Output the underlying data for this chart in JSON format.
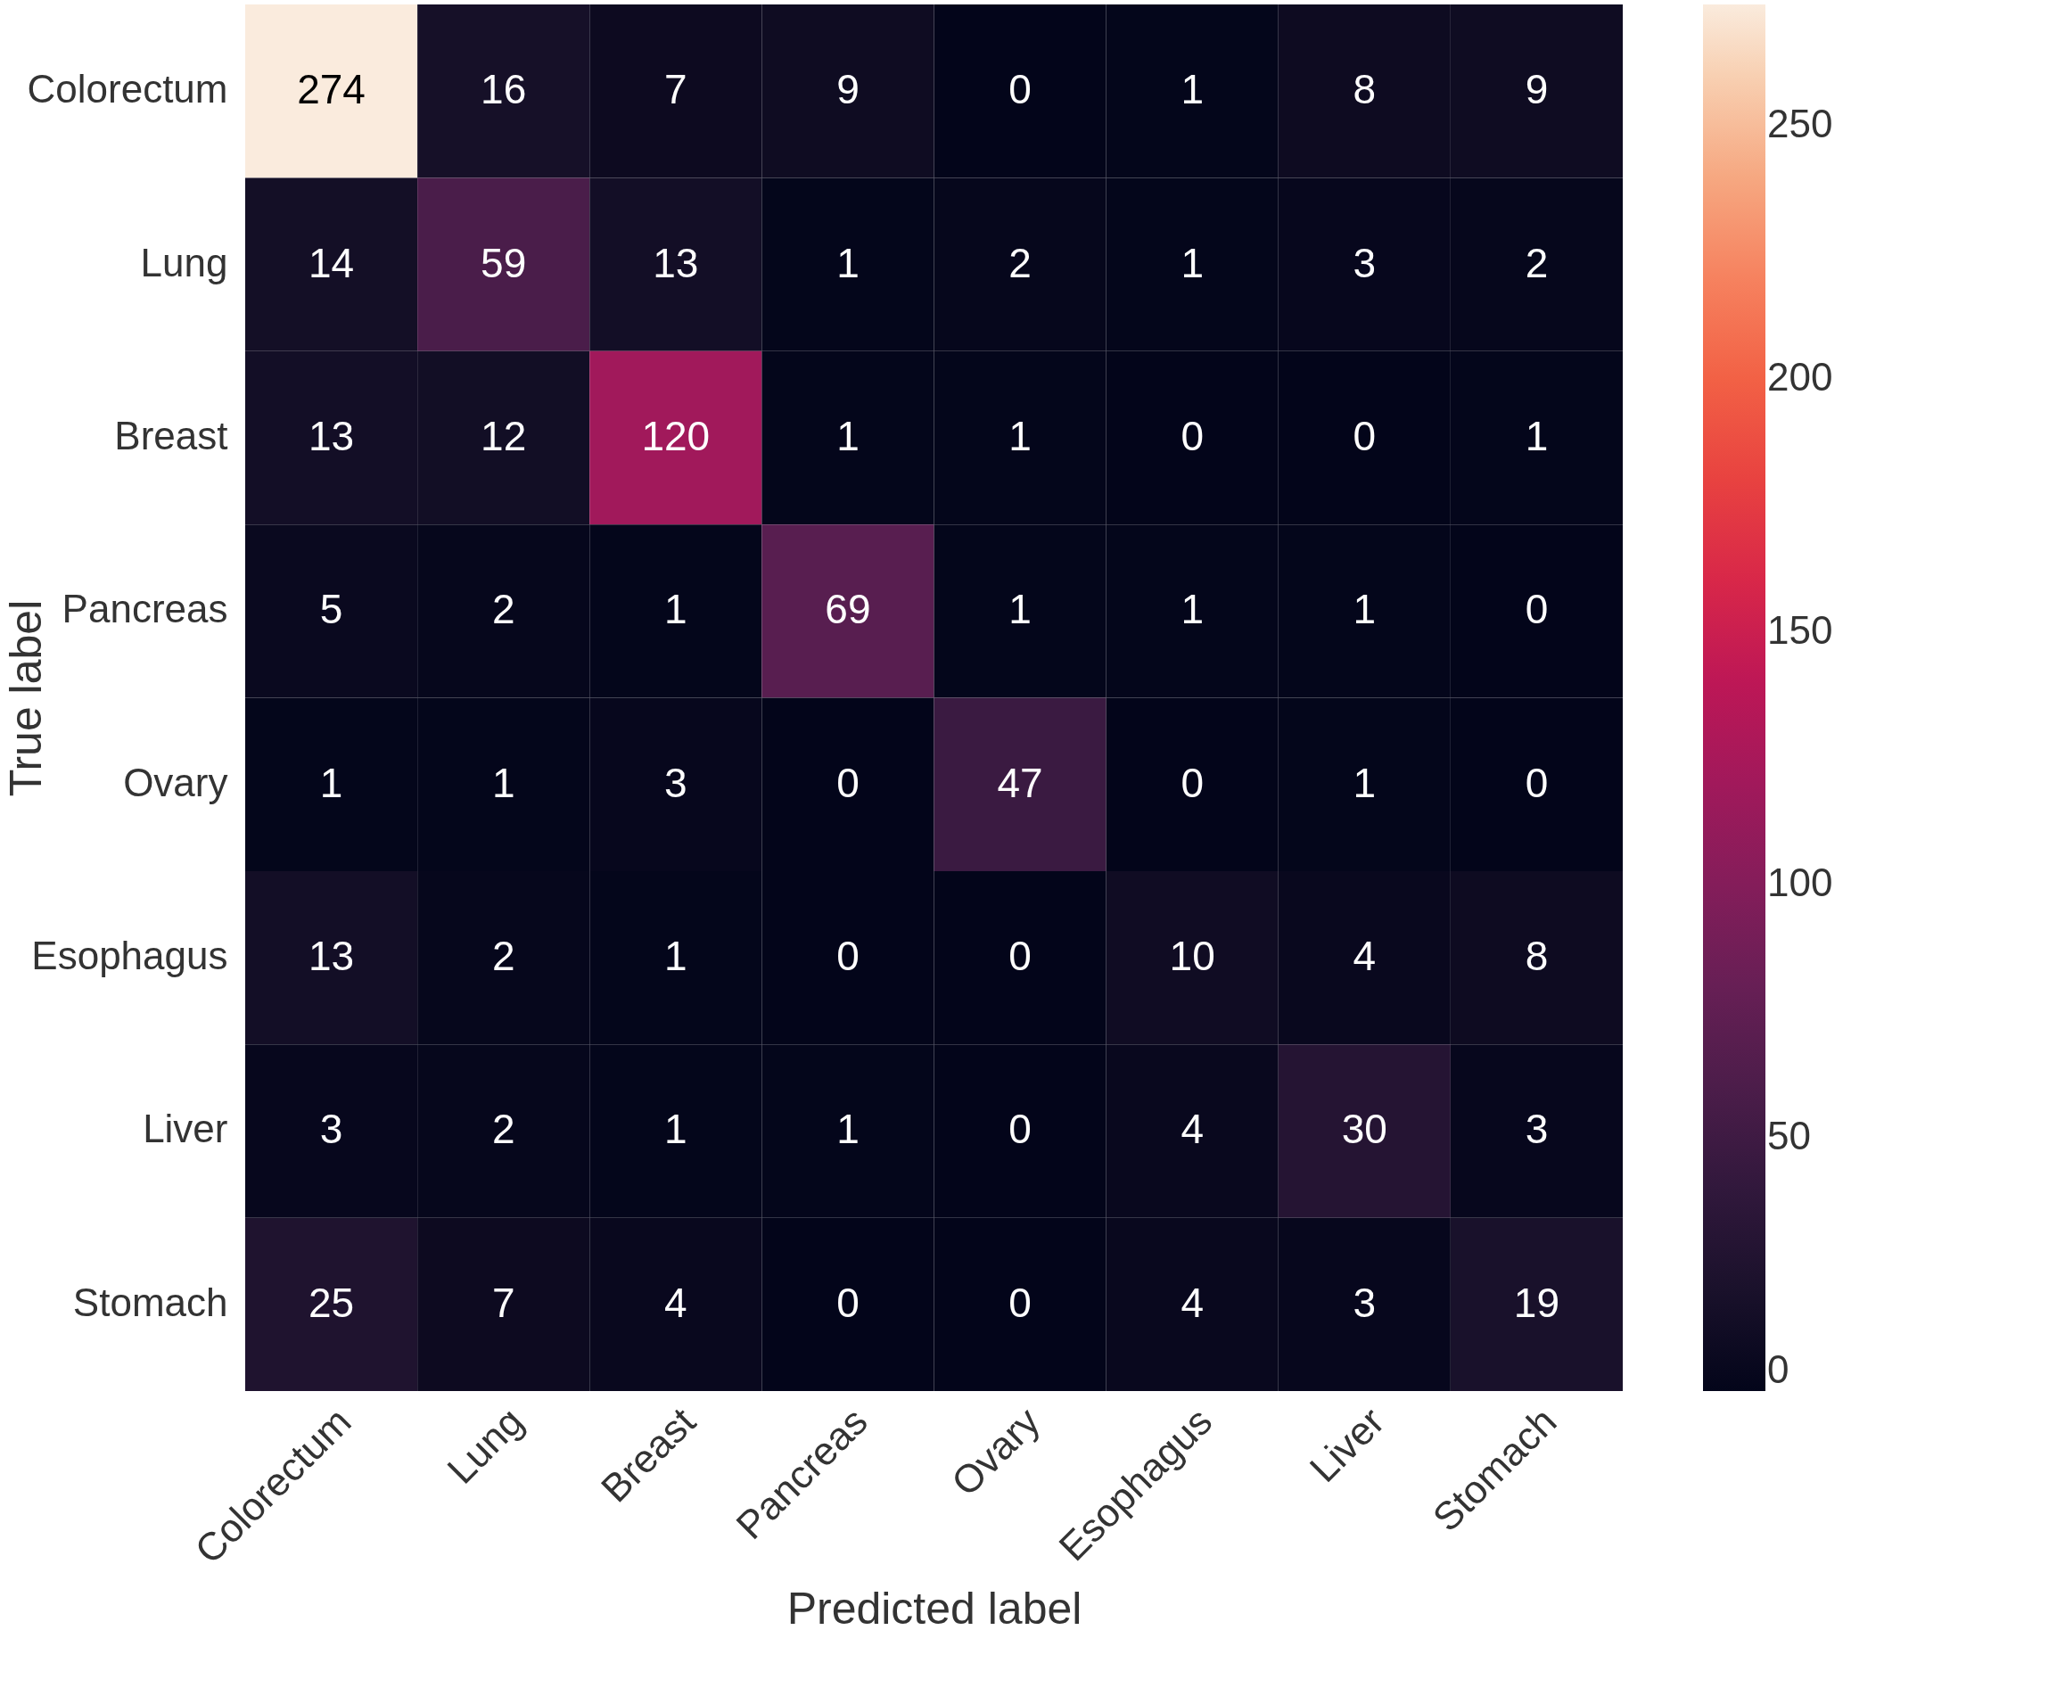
{
  "chart_data": {
    "type": "heatmap",
    "xlabel": "Predicted label",
    "ylabel": "True label",
    "categories": [
      "Colorectum",
      "Lung",
      "Breast",
      "Pancreas",
      "Ovary",
      "Esophagus",
      "Liver",
      "Stomach"
    ],
    "y_categories": [
      "Colorectum",
      "Lung",
      "Breast",
      "Pancreas",
      "Ovary",
      "Esophagus",
      "Liver",
      "Stomach"
    ],
    "cells": [
      [
        274,
        16,
        7,
        9,
        0,
        1,
        8,
        9
      ],
      [
        14,
        59,
        13,
        1,
        2,
        1,
        3,
        2
      ],
      [
        13,
        12,
        120,
        1,
        1,
        0,
        0,
        1
      ],
      [
        5,
        2,
        1,
        69,
        1,
        1,
        1,
        0
      ],
      [
        1,
        1,
        3,
        0,
        47,
        0,
        1,
        0
      ],
      [
        13,
        2,
        1,
        0,
        0,
        10,
        4,
        8
      ],
      [
        3,
        2,
        1,
        1,
        0,
        4,
        30,
        3
      ],
      [
        25,
        7,
        4,
        0,
        0,
        4,
        3,
        19
      ]
    ],
    "clim": [
      0,
      274
    ],
    "cticks": [
      0,
      50,
      100,
      150,
      200,
      250
    ],
    "data_labels": true
  }
}
